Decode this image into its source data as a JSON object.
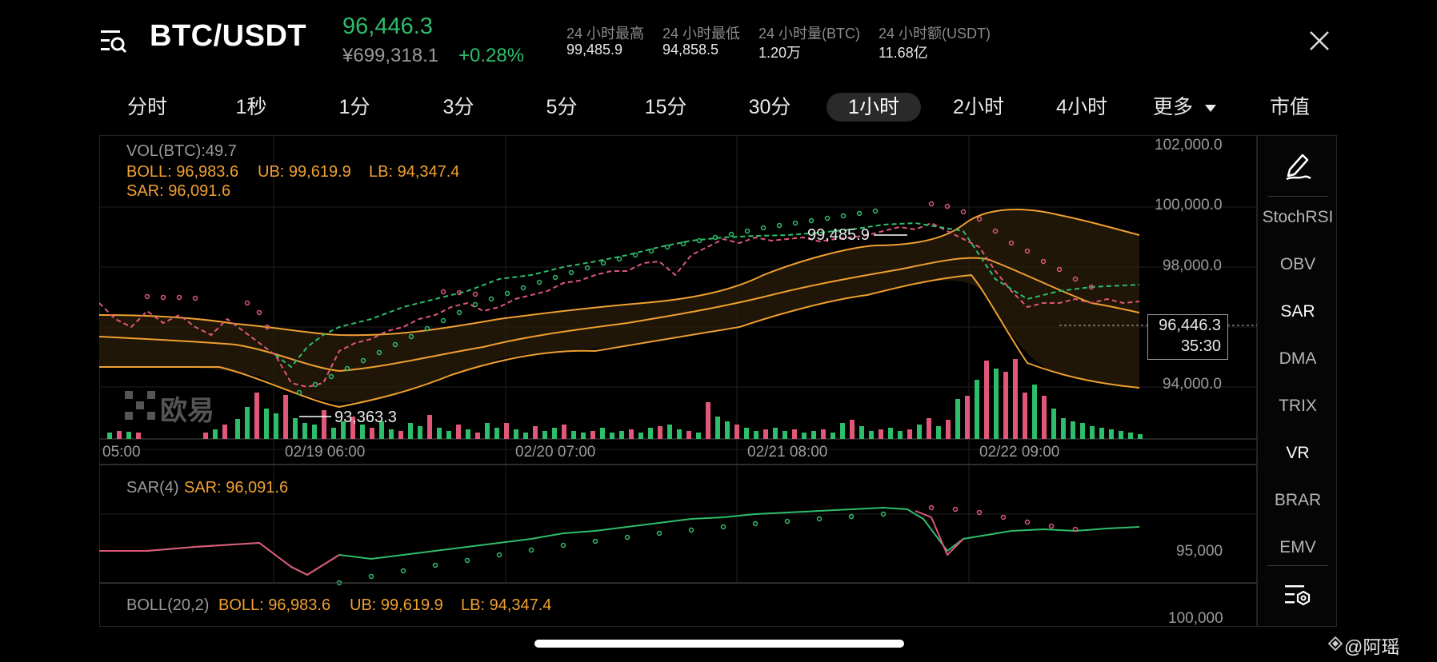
{
  "header": {
    "pair": "BTC/USDT",
    "price": "96,446.3",
    "cny_price": "¥699,318.1",
    "change": "+0.28%",
    "stats": [
      {
        "label": "24 小时最高",
        "value": "99,485.9"
      },
      {
        "label": "24 小时最低",
        "value": "94,858.5"
      },
      {
        "label": "24 小时量(BTC)",
        "value": "1.20万"
      },
      {
        "label": "24 小时额(USDT)",
        "value": "11.68亿"
      }
    ]
  },
  "tabs": [
    {
      "label": "分时",
      "active": false
    },
    {
      "label": "1秒",
      "active": false
    },
    {
      "label": "1分",
      "active": false
    },
    {
      "label": "3分",
      "active": false
    },
    {
      "label": "5分",
      "active": false
    },
    {
      "label": "15分",
      "active": false
    },
    {
      "label": "30分",
      "active": false
    },
    {
      "label": "1小时",
      "active": true
    },
    {
      "label": "2小时",
      "active": false
    },
    {
      "label": "4小时",
      "active": false
    },
    {
      "label": "更多",
      "active": false
    },
    {
      "label": "市值",
      "active": false
    }
  ],
  "legend": {
    "vol": "VOL(BTC):49.7",
    "boll": "BOLL: 96,983.6",
    "ub": "UB: 99,619.9",
    "lb": "LB: 94,347.4",
    "sar": "SAR: 96,091.6"
  },
  "y_axis": [
    "102,000.0",
    "100,000.0",
    "98,000.0",
    "94,000.0"
  ],
  "x_axis": [
    "05:00",
    "02/19 06:00",
    "02/20 07:00",
    "02/21 08:00",
    "02/22 09:00"
  ],
  "annotations": {
    "high": "99,485.9",
    "low": "93,363.3"
  },
  "current_price": {
    "price": "96,446.3",
    "countdown": "35:30"
  },
  "logo_text": "欧易",
  "sar_panel": {
    "title": "SAR(4)",
    "value": "SAR: 96,091.6",
    "axis": "95,000"
  },
  "boll_panel": {
    "title": "BOLL(20,2)",
    "boll": "BOLL: 96,983.6",
    "ub": "UB: 99,619.9",
    "lb": "LB: 94,347.4",
    "axis": "100,000"
  },
  "sidebar": {
    "items": [
      {
        "label": "StochRSI",
        "active": false
      },
      {
        "label": "OBV",
        "active": false
      },
      {
        "label": "SAR",
        "active": true
      },
      {
        "label": "DMA",
        "active": false
      },
      {
        "label": "TRIX",
        "active": false
      },
      {
        "label": "VR",
        "active": true
      },
      {
        "label": "BRAR",
        "active": false
      },
      {
        "label": "EMV",
        "active": false
      }
    ]
  },
  "watermark": "@阿瑶",
  "colors": {
    "up": "#2ebd6b",
    "down": "#e0577a",
    "boll": "#f0a030",
    "accent_text": "#f0a030"
  },
  "icons": [
    "menu-search-icon",
    "close-icon",
    "chevron-down-icon",
    "pencil-draw-icon",
    "indicator-settings-icon"
  ]
}
